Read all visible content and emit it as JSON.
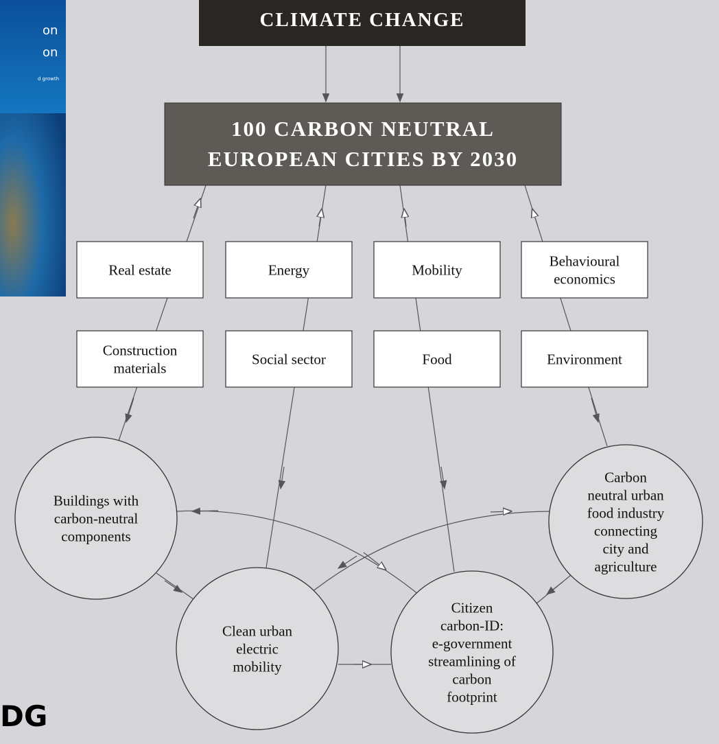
{
  "book_cover": {
    "lines": [
      "on",
      "on",
      "d growth"
    ]
  },
  "footer_text": "DG",
  "climate": {
    "label": "CLIMATE CHANGE"
  },
  "goal": {
    "lines": [
      "100 CARBON NEUTRAL",
      "EUROPEAN CITIES BY 2030"
    ]
  },
  "sectors": [
    {
      "lines": [
        "Real estate"
      ]
    },
    {
      "lines": [
        "Energy"
      ]
    },
    {
      "lines": [
        "Mobility"
      ]
    },
    {
      "lines": [
        "Behavioural",
        "economics"
      ]
    },
    {
      "lines": [
        "Construction",
        "materials"
      ]
    },
    {
      "lines": [
        "Social sector"
      ]
    },
    {
      "lines": [
        "Food"
      ]
    },
    {
      "lines": [
        "Environment"
      ]
    }
  ],
  "outcomes": [
    {
      "lines": [
        "Buildings with",
        "carbon-neutral",
        "components"
      ]
    },
    {
      "lines": [
        "Clean urban",
        "electric",
        "mobility"
      ]
    },
    {
      "lines": [
        "Citizen",
        "carbon-ID:",
        "e-government",
        "streamlining of",
        "carbon",
        "footprint"
      ]
    },
    {
      "lines": [
        "Carbon",
        "neutral urban",
        "food industry",
        "connecting",
        "city and",
        "agriculture"
      ]
    }
  ]
}
